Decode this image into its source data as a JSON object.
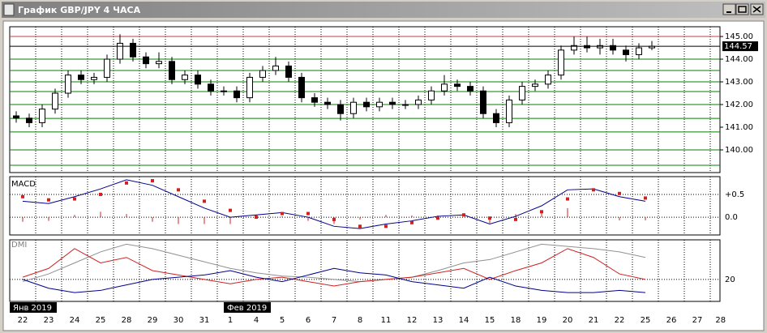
{
  "window": {
    "title": "График GBP/JPY 4 ЧАСА"
  },
  "chart_data": [
    {
      "type": "candlestick",
      "xlim": [
        0,
        27.375
      ],
      "xticks": [
        {
          "value": 0.5,
          "label": "22"
        },
        {
          "value": 1.5,
          "label": "23"
        },
        {
          "value": 2.5,
          "label": "24"
        },
        {
          "value": 3.5,
          "label": "25"
        },
        {
          "value": 4.5,
          "label": "28"
        },
        {
          "value": 5.5,
          "label": "29"
        },
        {
          "value": 6.5,
          "label": "30"
        },
        {
          "value": 7.5,
          "label": "31"
        },
        {
          "value": 8.5,
          "label": "1"
        },
        {
          "value": 9.5,
          "label": "4"
        },
        {
          "value": 10.5,
          "label": "5"
        },
        {
          "value": 11.5,
          "label": "6"
        },
        {
          "value": 12.5,
          "label": "7"
        },
        {
          "value": 13.5,
          "label": "8"
        },
        {
          "value": 14.5,
          "label": "11"
        },
        {
          "value": 15.5,
          "label": "12"
        },
        {
          "value": 16.5,
          "label": "13"
        },
        {
          "value": 17.5,
          "label": "14"
        },
        {
          "value": 18.5,
          "label": "15"
        },
        {
          "value": 19.5,
          "label": "18"
        },
        {
          "value": 20.5,
          "label": "19"
        },
        {
          "value": 21.5,
          "label": "20"
        },
        {
          "value": 22.5,
          "label": "21"
        },
        {
          "value": 23.5,
          "label": "22"
        },
        {
          "value": 24.5,
          "label": "25"
        },
        {
          "value": 25.5,
          "label": "26"
        },
        {
          "value": 26.5,
          "label": "27"
        },
        {
          "value": 27.4,
          "label": "28"
        }
      ],
      "month_labels": [
        {
          "value": 0,
          "label": "Янв 2019"
        },
        {
          "value": 8.25,
          "label": "Фев 2019"
        }
      ],
      "ylim": [
        139.0,
        145.43
      ],
      "yticks": [
        {
          "value": 140,
          "label": "140.00"
        },
        {
          "value": 141,
          "label": "141.00"
        },
        {
          "value": 142,
          "label": "142.00"
        },
        {
          "value": 143,
          "label": "143.00"
        },
        {
          "value": 144,
          "label": "144.00"
        },
        {
          "value": 145,
          "label": "145.00"
        }
      ],
      "last_price": 144.57,
      "hlines": [
        {
          "value": 145.0,
          "color": "#c04040"
        },
        {
          "value": 144.0,
          "color": "#008000"
        },
        {
          "value": 143.5,
          "color": "#008000"
        },
        {
          "value": 143.0,
          "color": "#008000"
        },
        {
          "value": 142.57,
          "color": "#008000"
        },
        {
          "value": 142.0,
          "color": "#008000"
        },
        {
          "value": 141.39,
          "color": "#008000"
        },
        {
          "value": 140.79,
          "color": "#008000"
        },
        {
          "value": 140.0,
          "color": "#008000"
        },
        {
          "value": 139.32,
          "color": "#008000"
        }
      ],
      "x": [
        0.25,
        0.75,
        1.25,
        1.75,
        2.25,
        2.75,
        3.25,
        3.75,
        4.25,
        4.75,
        5.25,
        5.75,
        6.25,
        6.75,
        7.25,
        7.75,
        8.25,
        8.75,
        9.25,
        9.75,
        10.25,
        10.75,
        11.25,
        11.75,
        12.25,
        12.75,
        13.25,
        13.75,
        14.25,
        14.75,
        15.25,
        15.75,
        16.25,
        16.75,
        17.25,
        17.75,
        18.25,
        18.75,
        19.25,
        19.75,
        20.25,
        20.75,
        21.25,
        21.75,
        22.25,
        22.75,
        23.25,
        23.75,
        24.25,
        24.75
      ],
      "open": [
        141.5,
        141.4,
        141.2,
        141.8,
        142.5,
        143.3,
        143.1,
        143.2,
        144.0,
        144.7,
        144.1,
        143.8,
        143.9,
        143.1,
        143.3,
        142.9,
        142.6,
        142.6,
        142.3,
        143.2,
        143.5,
        143.7,
        143.2,
        142.3,
        142.1,
        142.0,
        141.6,
        142.1,
        141.9,
        142.1,
        142.0,
        142.0,
        142.2,
        142.6,
        142.9,
        142.8,
        142.6,
        141.6,
        141.2,
        142.2,
        142.8,
        142.9,
        143.3,
        144.4,
        144.6,
        144.5,
        144.6,
        144.4,
        144.2,
        144.5
      ],
      "high": [
        141.7,
        141.6,
        142.0,
        142.7,
        143.5,
        143.5,
        143.4,
        144.2,
        145.1,
        144.9,
        144.3,
        144.3,
        144.1,
        143.5,
        143.5,
        143.1,
        142.8,
        142.8,
        143.4,
        143.7,
        144.1,
        143.9,
        143.4,
        142.5,
        142.3,
        142.2,
        142.3,
        142.3,
        142.3,
        142.3,
        142.2,
        142.4,
        142.8,
        143.3,
        143.1,
        143.0,
        142.8,
        141.8,
        142.4,
        143.0,
        143.1,
        143.5,
        144.6,
        145.0,
        145.0,
        144.9,
        144.9,
        144.6,
        144.7,
        144.8
      ],
      "low": [
        141.2,
        141.0,
        141.0,
        141.6,
        142.3,
        142.9,
        142.9,
        143.0,
        143.8,
        143.9,
        143.6,
        143.6,
        142.9,
        142.9,
        142.7,
        142.4,
        142.4,
        142.1,
        142.1,
        143.0,
        143.3,
        143.0,
        142.1,
        141.9,
        141.8,
        141.3,
        141.4,
        141.7,
        141.7,
        141.8,
        141.8,
        141.8,
        142.0,
        142.4,
        142.6,
        142.4,
        141.4,
        141.0,
        141.0,
        142.0,
        142.6,
        142.7,
        143.1,
        144.2,
        144.3,
        144.2,
        144.2,
        143.9,
        144.0,
        144.4
      ],
      "close": [
        141.4,
        141.2,
        141.8,
        142.5,
        143.3,
        143.1,
        143.2,
        144.0,
        144.7,
        144.1,
        143.8,
        143.9,
        143.1,
        143.3,
        142.9,
        142.6,
        142.6,
        142.3,
        143.2,
        143.5,
        143.7,
        143.2,
        142.3,
        142.1,
        142.0,
        141.6,
        142.1,
        141.9,
        142.1,
        142.0,
        142.0,
        142.2,
        142.6,
        142.9,
        142.8,
        142.6,
        141.6,
        141.2,
        142.2,
        142.8,
        142.9,
        143.3,
        144.4,
        144.6,
        144.5,
        144.6,
        144.4,
        144.2,
        144.5,
        144.57
      ]
    },
    {
      "type": "line",
      "title": "MACD",
      "ylim": [
        -0.39,
        0.89
      ],
      "yticks": [
        {
          "value": 0.5,
          "label": "+0.5"
        },
        {
          "value": 0,
          "label": "0.0"
        }
      ],
      "x": [
        0.5,
        1.5,
        2.5,
        3.5,
        4.5,
        5.5,
        6.5,
        7.5,
        8.5,
        9.5,
        10.5,
        11.5,
        12.5,
        13.5,
        14.5,
        15.5,
        16.5,
        17.5,
        18.5,
        19.5,
        20.5,
        21.5,
        22.5,
        23.5,
        24.5
      ],
      "series": [
        {
          "color": "#d02020",
          "style": "bar",
          "values": [
            -0.1,
            -0.08,
            0.05,
            0.12,
            0.07,
            -0.1,
            -0.15,
            -0.15,
            -0.15,
            0.05,
            0.02,
            -0.08,
            -0.15,
            -0.05,
            0.05,
            0.04,
            0.04,
            0,
            -0.13,
            0.07,
            0.13,
            0.2,
            0.02,
            -0.07,
            -0.07
          ]
        },
        {
          "color": "#00008b",
          "style": "line",
          "values": [
            0.35,
            0.3,
            0.45,
            0.62,
            0.82,
            0.7,
            0.45,
            0.2,
            0.0,
            0.05,
            0.1,
            0.0,
            -0.2,
            -0.25,
            -0.15,
            -0.08,
            0.02,
            0.05,
            -0.15,
            0.02,
            0.25,
            0.6,
            0.62,
            0.45,
            0.35
          ]
        },
        {
          "color": "#d02020",
          "style": "dots",
          "values": [
            0.45,
            0.38,
            0.4,
            0.5,
            0.75,
            0.8,
            0.6,
            0.35,
            0.15,
            0.0,
            0.08,
            0.08,
            -0.05,
            -0.2,
            -0.2,
            -0.12,
            -0.02,
            0.05,
            -0.02,
            -0.05,
            0.12,
            0.4,
            0.6,
            0.52,
            0.42
          ]
        }
      ]
    },
    {
      "type": "line",
      "title": "DMI",
      "ylim": [
        0,
        56
      ],
      "yticks": [
        20
      ],
      "x": [
        0.5,
        1.5,
        2.5,
        3.5,
        4.5,
        5.5,
        6.5,
        7.5,
        8.5,
        9.5,
        10.5,
        11.5,
        12.5,
        13.5,
        14.5,
        15.5,
        16.5,
        17.5,
        18.5,
        19.5,
        20.5,
        21.5,
        22.5,
        23.5,
        24.5
      ],
      "series": [
        {
          "color": "#909090",
          "style": "line",
          "values": [
            18,
            25,
            35,
            45,
            52,
            48,
            42,
            36,
            30,
            26,
            23,
            22,
            20,
            18,
            20,
            22,
            28,
            35,
            38,
            45,
            52,
            50,
            48,
            45,
            40
          ]
        },
        {
          "color": "#d02020",
          "style": "line",
          "values": [
            22,
            30,
            48,
            35,
            40,
            28,
            24,
            20,
            16,
            20,
            22,
            18,
            14,
            18,
            20,
            22,
            26,
            30,
            20,
            28,
            35,
            48,
            40,
            25,
            20
          ]
        },
        {
          "color": "#00008b",
          "style": "line",
          "values": [
            20,
            12,
            8,
            10,
            15,
            20,
            22,
            24,
            28,
            22,
            18,
            24,
            30,
            26,
            24,
            18,
            15,
            12,
            22,
            14,
            10,
            8,
            8,
            10,
            8
          ]
        }
      ]
    }
  ]
}
